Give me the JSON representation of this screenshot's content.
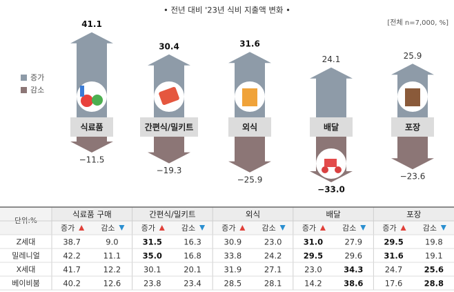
{
  "chart_data": {
    "type": "arrow",
    "title": "• 전년 대비 '23년 식비 지출액 변화 •",
    "note": "[전체 n=7,000, %]",
    "categories": [
      "식료품",
      "간편식/밀키트",
      "외식",
      "배달",
      "포장"
    ],
    "series": [
      {
        "name": "증가",
        "color": "#8e9ba8",
        "values": [
          41.1,
          30.4,
          31.6,
          24.1,
          25.9
        ],
        "bold": [
          true,
          true,
          true,
          false,
          false
        ]
      },
      {
        "name": "감소",
        "color": "#8c7676",
        "values": [
          -11.5,
          -19.3,
          -25.9,
          -33.0,
          -23.6
        ],
        "value_labels": [
          "−11.5",
          "−19.3",
          "−25.9",
          "−33.0",
          "−23.6"
        ],
        "bold": [
          false,
          false,
          false,
          true,
          false
        ]
      }
    ]
  },
  "table": {
    "unit": "단위:%",
    "groups": [
      "식료품 구매",
      "간편식/밀키트",
      "외식",
      "배달",
      "포장"
    ],
    "subheaders": [
      "증가",
      "감소"
    ],
    "rows": [
      {
        "label": "Z세대",
        "cells": [
          "38.7",
          "9.0",
          "31.5",
          "16.3",
          "30.9",
          "23.0",
          "31.0",
          "27.9",
          "29.5",
          "19.8"
        ],
        "bold": [
          false,
          false,
          true,
          false,
          false,
          false,
          true,
          false,
          true,
          false
        ]
      },
      {
        "label": "밀레니얼",
        "cells": [
          "42.2",
          "11.1",
          "35.0",
          "16.8",
          "33.8",
          "24.2",
          "29.5",
          "29.6",
          "31.6",
          "19.1"
        ],
        "bold": [
          false,
          false,
          true,
          false,
          false,
          false,
          true,
          false,
          true,
          false
        ]
      },
      {
        "label": "X세대",
        "cells": [
          "41.7",
          "12.2",
          "30.1",
          "20.1",
          "31.9",
          "27.1",
          "23.0",
          "34.3",
          "24.7",
          "25.6"
        ],
        "bold": [
          false,
          false,
          false,
          false,
          false,
          false,
          false,
          true,
          false,
          true
        ]
      },
      {
        "label": "베이비붐",
        "cells": [
          "40.2",
          "12.6",
          "23.8",
          "23.4",
          "28.5",
          "28.1",
          "14.2",
          "38.6",
          "17.6",
          "28.8"
        ],
        "bold": [
          false,
          false,
          false,
          false,
          false,
          false,
          false,
          true,
          false,
          true
        ]
      }
    ]
  }
}
